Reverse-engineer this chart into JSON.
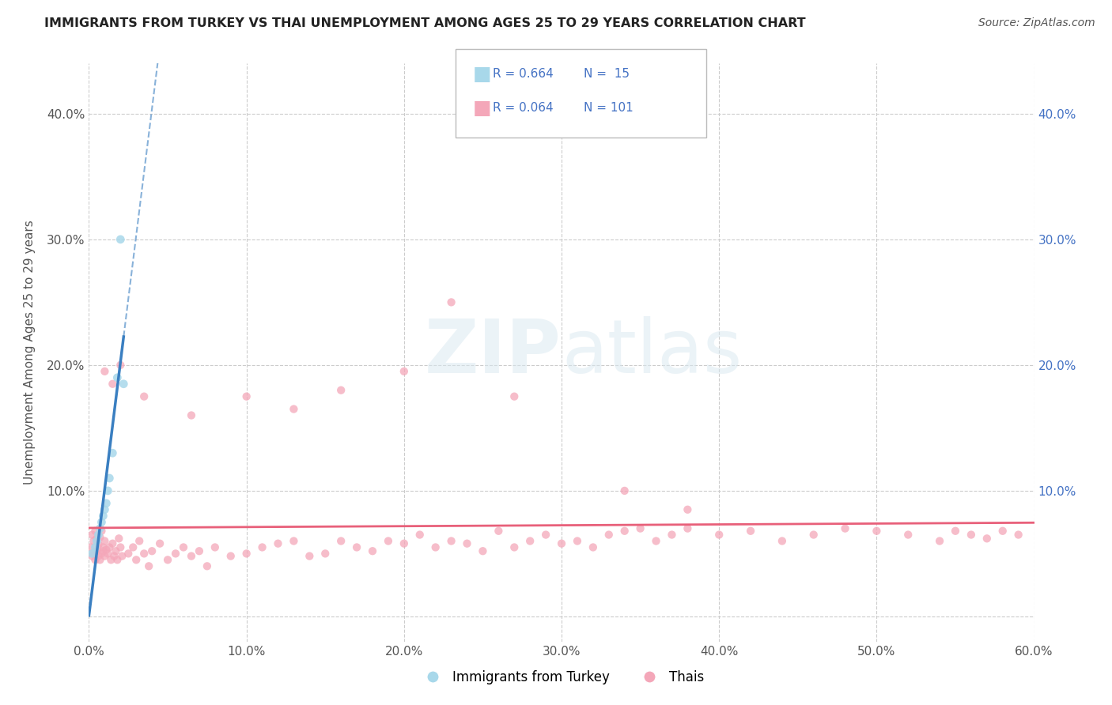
{
  "title": "IMMIGRANTS FROM TURKEY VS THAI UNEMPLOYMENT AMONG AGES 25 TO 29 YEARS CORRELATION CHART",
  "source": "Source: ZipAtlas.com",
  "ylabel": "Unemployment Among Ages 25 to 29 years",
  "xlim": [
    0.0,
    0.6
  ],
  "ylim": [
    -0.02,
    0.44
  ],
  "xticks": [
    0.0,
    0.1,
    0.2,
    0.3,
    0.4,
    0.5,
    0.6
  ],
  "xticklabels": [
    "0.0%",
    "10.0%",
    "20.0%",
    "30.0%",
    "40.0%",
    "50.0%",
    "60.0%"
  ],
  "yticks": [
    0.0,
    0.1,
    0.2,
    0.3,
    0.4
  ],
  "yticklabels_left": [
    "",
    "10.0%",
    "20.0%",
    "30.0%",
    "40.0%"
  ],
  "yticklabels_right": [
    "",
    "10.0%",
    "20.0%",
    "30.0%",
    "40.0%"
  ],
  "color_turkey": "#a8d8ea",
  "color_thai": "#f4a7b9",
  "trendline_turkey": "#3a7fc1",
  "trendline_thai": "#e8607a",
  "turkey_x": [
    0.002,
    0.004,
    0.005,
    0.006,
    0.007,
    0.008,
    0.009,
    0.01,
    0.011,
    0.012,
    0.013,
    0.015,
    0.018,
    0.02,
    0.022
  ],
  "turkey_y": [
    0.05,
    0.055,
    0.06,
    0.065,
    0.07,
    0.075,
    0.08,
    0.085,
    0.09,
    0.1,
    0.11,
    0.13,
    0.19,
    0.3,
    0.185
  ],
  "thai_x": [
    0.001,
    0.002,
    0.002,
    0.003,
    0.003,
    0.004,
    0.004,
    0.005,
    0.005,
    0.006,
    0.006,
    0.007,
    0.007,
    0.008,
    0.008,
    0.009,
    0.009,
    0.01,
    0.01,
    0.011,
    0.012,
    0.013,
    0.014,
    0.015,
    0.016,
    0.017,
    0.018,
    0.019,
    0.02,
    0.021,
    0.025,
    0.028,
    0.03,
    0.032,
    0.035,
    0.038,
    0.04,
    0.045,
    0.05,
    0.055,
    0.06,
    0.065,
    0.07,
    0.075,
    0.08,
    0.09,
    0.1,
    0.11,
    0.12,
    0.13,
    0.14,
    0.15,
    0.16,
    0.17,
    0.18,
    0.19,
    0.2,
    0.21,
    0.22,
    0.23,
    0.24,
    0.25,
    0.26,
    0.27,
    0.28,
    0.29,
    0.3,
    0.31,
    0.32,
    0.33,
    0.34,
    0.35,
    0.36,
    0.37,
    0.38,
    0.4,
    0.42,
    0.44,
    0.46,
    0.48,
    0.5,
    0.52,
    0.54,
    0.55,
    0.56,
    0.57,
    0.58,
    0.59,
    0.01,
    0.015,
    0.02,
    0.035,
    0.065,
    0.1,
    0.13,
    0.16,
    0.2,
    0.23,
    0.27,
    0.34,
    0.38
  ],
  "thai_y": [
    0.055,
    0.048,
    0.065,
    0.05,
    0.06,
    0.045,
    0.068,
    0.052,
    0.062,
    0.048,
    0.057,
    0.045,
    0.063,
    0.05,
    0.068,
    0.052,
    0.055,
    0.048,
    0.06,
    0.053,
    0.05,
    0.055,
    0.045,
    0.058,
    0.048,
    0.052,
    0.045,
    0.062,
    0.055,
    0.048,
    0.05,
    0.055,
    0.045,
    0.06,
    0.05,
    0.04,
    0.052,
    0.058,
    0.045,
    0.05,
    0.055,
    0.048,
    0.052,
    0.04,
    0.055,
    0.048,
    0.05,
    0.055,
    0.058,
    0.06,
    0.048,
    0.05,
    0.06,
    0.055,
    0.052,
    0.06,
    0.058,
    0.065,
    0.055,
    0.06,
    0.058,
    0.052,
    0.068,
    0.055,
    0.06,
    0.065,
    0.058,
    0.06,
    0.055,
    0.065,
    0.068,
    0.07,
    0.06,
    0.065,
    0.07,
    0.065,
    0.068,
    0.06,
    0.065,
    0.07,
    0.068,
    0.065,
    0.06,
    0.068,
    0.065,
    0.062,
    0.068,
    0.065,
    0.195,
    0.185,
    0.2,
    0.175,
    0.16,
    0.175,
    0.165,
    0.18,
    0.195,
    0.25,
    0.175,
    0.1,
    0.085
  ]
}
